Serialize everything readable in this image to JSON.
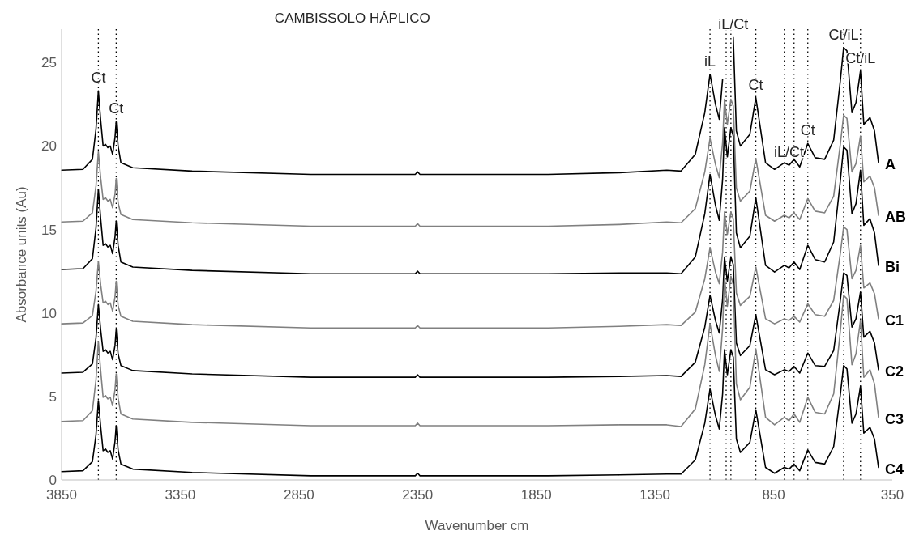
{
  "chart_data": {
    "type": "line",
    "title": "CAMBISSOLO HÁPLICO",
    "xlabel": "Wavenumber cm",
    "ylabel": "Absorbance units (Au)",
    "xlim": [
      3850,
      350
    ],
    "xticks": [
      3850,
      3350,
      2850,
      2350,
      1850,
      1350,
      850,
      350
    ],
    "ylim": [
      0,
      27
    ],
    "yticks": [
      0,
      5,
      10,
      15,
      20,
      25
    ],
    "grid": false,
    "marker": "none",
    "line_style": "solid",
    "x": [
      3850,
      3760,
      3720,
      3705,
      3695,
      3685,
      3675,
      3665,
      3655,
      3645,
      3635,
      3625,
      3620,
      3612,
      3600,
      3550,
      3300,
      2800,
      2360,
      2350,
      2340,
      1800,
      1500,
      1300,
      1240,
      1180,
      1140,
      1118,
      1095,
      1079,
      1065,
      1057,
      1045,
      1030,
      1020,
      1007,
      990,
      950,
      925,
      884,
      846,
      805,
      785,
      764,
      740,
      706,
      675,
      635,
      597,
      569,
      555,
      541,
      520,
      503,
      484,
      470,
      444,
      425,
      408
    ],
    "series": [
      {
        "name": "A",
        "color": "#000000",
        "values": [
          18.55,
          18.6,
          19.2,
          21.0,
          23.3,
          21.5,
          20.0,
          20.1,
          19.9,
          20.0,
          19.5,
          20.5,
          21.45,
          20.0,
          19.0,
          18.7,
          18.5,
          18.3,
          18.3,
          18.45,
          18.3,
          18.3,
          18.4,
          18.55,
          18.5,
          19.5,
          22.0,
          24.3,
          22.5,
          21.6,
          24.0,
          null,
          null,
          null,
          26.5,
          20.9,
          20.0,
          20.7,
          22.9,
          19.0,
          18.6,
          19.0,
          18.85,
          19.2,
          18.75,
          20.15,
          19.3,
          19.2,
          20.35,
          23.9,
          25.9,
          25.7,
          22.0,
          22.6,
          24.5,
          21.3,
          21.7,
          20.9,
          19.0
        ]
      },
      {
        "name": "AB",
        "color": "#808080",
        "values": [
          15.45,
          15.5,
          16.0,
          17.6,
          19.65,
          18.05,
          16.8,
          16.9,
          16.7,
          16.8,
          16.3,
          17.1,
          18.05,
          16.6,
          15.9,
          15.6,
          15.4,
          15.2,
          15.2,
          15.35,
          15.2,
          15.2,
          15.3,
          15.45,
          15.4,
          16.25,
          18.45,
          20.45,
          18.9,
          18.1,
          20.2,
          22.8,
          21.3,
          22.8,
          22.4,
          17.5,
          16.7,
          17.3,
          19.25,
          15.85,
          15.5,
          15.85,
          15.7,
          16.0,
          15.6,
          16.85,
          16.1,
          16.0,
          17.0,
          20.1,
          21.85,
          21.65,
          18.45,
          18.95,
          20.6,
          17.85,
          18.2,
          17.5,
          15.85
        ]
      },
      {
        "name": "Bi",
        "color": "#000000",
        "values": [
          12.6,
          12.65,
          13.25,
          15.1,
          17.4,
          15.6,
          14.05,
          14.15,
          13.95,
          14.05,
          13.55,
          14.55,
          15.5,
          14.05,
          13.05,
          12.75,
          12.55,
          12.35,
          12.35,
          12.5,
          12.35,
          12.35,
          12.4,
          12.4,
          12.35,
          13.35,
          15.95,
          18.3,
          16.45,
          15.55,
          18.0,
          21.1,
          19.35,
          21.1,
          20.6,
          14.8,
          13.9,
          14.6,
          16.9,
          12.85,
          12.45,
          12.85,
          12.7,
          13.05,
          12.6,
          14.05,
          13.2,
          13.05,
          14.25,
          17.9,
          19.95,
          19.75,
          15.95,
          16.55,
          18.55,
          15.25,
          15.65,
          14.8,
          12.85
        ]
      },
      {
        "name": "C1",
        "color": "#808080",
        "values": [
          9.35,
          9.4,
          9.85,
          11.3,
          13.1,
          11.65,
          10.6,
          10.7,
          10.5,
          10.6,
          10.1,
          10.95,
          11.9,
          10.45,
          9.8,
          9.5,
          9.3,
          9.1,
          9.1,
          9.25,
          9.1,
          9.1,
          9.2,
          9.3,
          9.25,
          10.05,
          12.05,
          13.9,
          12.45,
          11.75,
          13.65,
          16.05,
          14.7,
          16.05,
          15.65,
          11.2,
          10.45,
          11.0,
          12.75,
          9.65,
          9.35,
          9.65,
          9.55,
          9.8,
          9.45,
          10.55,
          9.9,
          9.8,
          10.75,
          13.55,
          15.15,
          15.0,
          12.05,
          12.55,
          14.05,
          11.5,
          11.8,
          11.15,
          9.65
        ]
      },
      {
        "name": "C2",
        "color": "#000000",
        "values": [
          6.4,
          6.45,
          6.95,
          8.5,
          10.5,
          8.95,
          7.7,
          7.8,
          7.6,
          7.7,
          7.2,
          8.05,
          9.0,
          7.55,
          6.85,
          6.55,
          6.35,
          6.15,
          6.15,
          6.3,
          6.15,
          6.15,
          6.2,
          6.25,
          6.2,
          7.05,
          9.15,
          11.05,
          9.55,
          8.8,
          10.8,
          13.35,
          11.9,
          13.35,
          12.9,
          8.2,
          7.45,
          8.05,
          9.9,
          6.6,
          6.3,
          6.6,
          6.5,
          6.8,
          6.4,
          7.6,
          6.85,
          6.8,
          7.75,
          10.75,
          12.4,
          12.25,
          9.15,
          9.65,
          11.25,
          8.55,
          8.9,
          8.2,
          6.6
        ]
      },
      {
        "name": "C3",
        "color": "#808080",
        "values": [
          3.5,
          3.55,
          4.15,
          6.0,
          8.3,
          6.5,
          4.95,
          5.05,
          4.85,
          4.95,
          4.45,
          5.4,
          6.35,
          4.9,
          3.95,
          3.65,
          3.45,
          3.25,
          3.25,
          3.4,
          3.25,
          3.25,
          3.3,
          3.3,
          3.2,
          4.25,
          6.9,
          9.35,
          7.45,
          6.5,
          9.05,
          12.2,
          10.4,
          12.2,
          11.7,
          5.75,
          4.8,
          5.55,
          7.85,
          3.75,
          3.3,
          3.75,
          3.55,
          3.95,
          3.45,
          4.95,
          4.05,
          3.95,
          5.15,
          8.9,
          11.05,
          10.85,
          6.9,
          7.55,
          9.55,
          6.15,
          6.6,
          5.75,
          3.75
        ]
      },
      {
        "name": "C4",
        "color": "#000000",
        "values": [
          0.5,
          0.55,
          1.1,
          2.7,
          4.75,
          3.15,
          1.75,
          1.85,
          1.65,
          1.75,
          1.25,
          2.3,
          3.25,
          1.8,
          0.95,
          0.65,
          0.45,
          0.25,
          0.25,
          0.4,
          0.25,
          0.25,
          0.3,
          0.35,
          0.35,
          1.2,
          3.4,
          5.45,
          3.85,
          3.05,
          5.15,
          7.8,
          6.3,
          7.8,
          7.35,
          2.45,
          1.65,
          2.25,
          4.2,
          0.75,
          0.4,
          0.75,
          0.65,
          0.95,
          0.55,
          1.8,
          1.05,
          0.95,
          2.0,
          5.1,
          6.85,
          6.65,
          3.4,
          3.95,
          5.6,
          2.8,
          3.15,
          2.45,
          0.75
        ]
      }
    ],
    "ref_lines": [
      {
        "axis": "x",
        "value": 3695,
        "color": "#000000",
        "line_style": "dotted"
      },
      {
        "axis": "x",
        "value": 3620,
        "color": "#000000",
        "line_style": "dotted"
      },
      {
        "axis": "x",
        "value": 1118,
        "color": "#000000",
        "line_style": "dotted"
      },
      {
        "axis": "x",
        "value": 1050,
        "color": "#000000",
        "line_style": "dotted"
      },
      {
        "axis": "x",
        "value": 1030,
        "color": "#000000",
        "line_style": "dotted"
      },
      {
        "axis": "x",
        "value": 925,
        "color": "#000000",
        "line_style": "dotted"
      },
      {
        "axis": "x",
        "value": 805,
        "color": "#000000",
        "line_style": "dotted"
      },
      {
        "axis": "x",
        "value": 764,
        "color": "#000000",
        "line_style": "dotted"
      },
      {
        "axis": "x",
        "value": 706,
        "color": "#000000",
        "line_style": "dotted"
      },
      {
        "axis": "x",
        "value": 555,
        "color": "#000000",
        "line_style": "dotted"
      },
      {
        "axis": "x",
        "value": 484,
        "color": "#000000",
        "line_style": "dotted"
      }
    ],
    "annotations": [
      {
        "text": "Ct",
        "x": 3695,
        "y": 23.3
      },
      {
        "text": "Ct",
        "x": 3620,
        "y": 21.45
      },
      {
        "text": "iL",
        "x": 1118,
        "y": 24.3
      },
      {
        "text": "iL/Ct",
        "x": 1020,
        "y": 26.5
      },
      {
        "text": "Ct",
        "x": 925,
        "y": 22.9
      },
      {
        "text": "iL/Ct",
        "x": 785,
        "y": 18.85
      },
      {
        "text": "Ct",
        "x": 706,
        "y": 20.15
      },
      {
        "text": "Ct/iL",
        "x": 555,
        "y": 25.9
      },
      {
        "text": "Ct/iL",
        "x": 484,
        "y": 24.5
      }
    ]
  }
}
